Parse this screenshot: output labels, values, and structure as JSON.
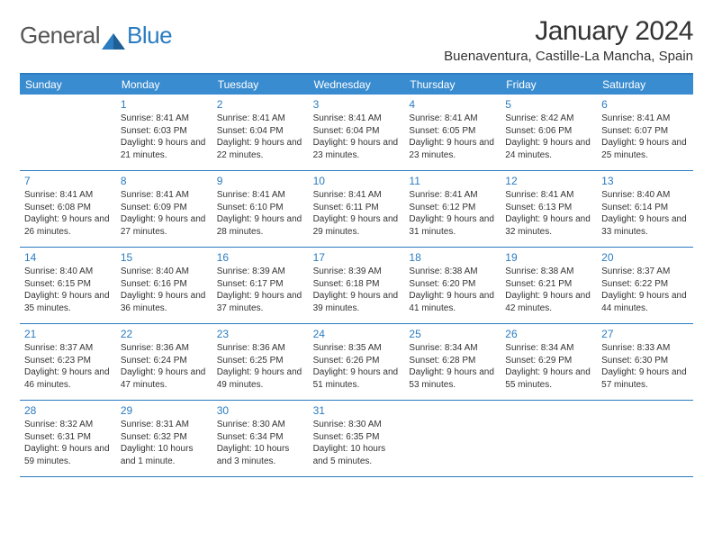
{
  "logo": {
    "text1": "General",
    "text2": "Blue"
  },
  "title": "January 2024",
  "location": "Buenaventura, Castille-La Mancha, Spain",
  "dow": [
    "Sunday",
    "Monday",
    "Tuesday",
    "Wednesday",
    "Thursday",
    "Friday",
    "Saturday"
  ],
  "colors": {
    "brand_blue": "#3a8cd0",
    "rule_blue": "#2b7cc0",
    "text": "#333333",
    "bg": "#ffffff"
  },
  "typography": {
    "title_fontsize": 30,
    "location_fontsize": 15,
    "dow_fontsize": 12,
    "daynum_fontsize": 12,
    "body_fontsize": 10
  },
  "layout": {
    "cols": 7,
    "rows": 5,
    "first_day_offset": 1
  },
  "days": [
    {
      "n": "1",
      "sr": "8:41 AM",
      "ss": "6:03 PM",
      "dl": "9 hours and 21 minutes."
    },
    {
      "n": "2",
      "sr": "8:41 AM",
      "ss": "6:04 PM",
      "dl": "9 hours and 22 minutes."
    },
    {
      "n": "3",
      "sr": "8:41 AM",
      "ss": "6:04 PM",
      "dl": "9 hours and 23 minutes."
    },
    {
      "n": "4",
      "sr": "8:41 AM",
      "ss": "6:05 PM",
      "dl": "9 hours and 23 minutes."
    },
    {
      "n": "5",
      "sr": "8:42 AM",
      "ss": "6:06 PM",
      "dl": "9 hours and 24 minutes."
    },
    {
      "n": "6",
      "sr": "8:41 AM",
      "ss": "6:07 PM",
      "dl": "9 hours and 25 minutes."
    },
    {
      "n": "7",
      "sr": "8:41 AM",
      "ss": "6:08 PM",
      "dl": "9 hours and 26 minutes."
    },
    {
      "n": "8",
      "sr": "8:41 AM",
      "ss": "6:09 PM",
      "dl": "9 hours and 27 minutes."
    },
    {
      "n": "9",
      "sr": "8:41 AM",
      "ss": "6:10 PM",
      "dl": "9 hours and 28 minutes."
    },
    {
      "n": "10",
      "sr": "8:41 AM",
      "ss": "6:11 PM",
      "dl": "9 hours and 29 minutes."
    },
    {
      "n": "11",
      "sr": "8:41 AM",
      "ss": "6:12 PM",
      "dl": "9 hours and 31 minutes."
    },
    {
      "n": "12",
      "sr": "8:41 AM",
      "ss": "6:13 PM",
      "dl": "9 hours and 32 minutes."
    },
    {
      "n": "13",
      "sr": "8:40 AM",
      "ss": "6:14 PM",
      "dl": "9 hours and 33 minutes."
    },
    {
      "n": "14",
      "sr": "8:40 AM",
      "ss": "6:15 PM",
      "dl": "9 hours and 35 minutes."
    },
    {
      "n": "15",
      "sr": "8:40 AM",
      "ss": "6:16 PM",
      "dl": "9 hours and 36 minutes."
    },
    {
      "n": "16",
      "sr": "8:39 AM",
      "ss": "6:17 PM",
      "dl": "9 hours and 37 minutes."
    },
    {
      "n": "17",
      "sr": "8:39 AM",
      "ss": "6:18 PM",
      "dl": "9 hours and 39 minutes."
    },
    {
      "n": "18",
      "sr": "8:38 AM",
      "ss": "6:20 PM",
      "dl": "9 hours and 41 minutes."
    },
    {
      "n": "19",
      "sr": "8:38 AM",
      "ss": "6:21 PM",
      "dl": "9 hours and 42 minutes."
    },
    {
      "n": "20",
      "sr": "8:37 AM",
      "ss": "6:22 PM",
      "dl": "9 hours and 44 minutes."
    },
    {
      "n": "21",
      "sr": "8:37 AM",
      "ss": "6:23 PM",
      "dl": "9 hours and 46 minutes."
    },
    {
      "n": "22",
      "sr": "8:36 AM",
      "ss": "6:24 PM",
      "dl": "9 hours and 47 minutes."
    },
    {
      "n": "23",
      "sr": "8:36 AM",
      "ss": "6:25 PM",
      "dl": "9 hours and 49 minutes."
    },
    {
      "n": "24",
      "sr": "8:35 AM",
      "ss": "6:26 PM",
      "dl": "9 hours and 51 minutes."
    },
    {
      "n": "25",
      "sr": "8:34 AM",
      "ss": "6:28 PM",
      "dl": "9 hours and 53 minutes."
    },
    {
      "n": "26",
      "sr": "8:34 AM",
      "ss": "6:29 PM",
      "dl": "9 hours and 55 minutes."
    },
    {
      "n": "27",
      "sr": "8:33 AM",
      "ss": "6:30 PM",
      "dl": "9 hours and 57 minutes."
    },
    {
      "n": "28",
      "sr": "8:32 AM",
      "ss": "6:31 PM",
      "dl": "9 hours and 59 minutes."
    },
    {
      "n": "29",
      "sr": "8:31 AM",
      "ss": "6:32 PM",
      "dl": "10 hours and 1 minute."
    },
    {
      "n": "30",
      "sr": "8:30 AM",
      "ss": "6:34 PM",
      "dl": "10 hours and 3 minutes."
    },
    {
      "n": "31",
      "sr": "8:30 AM",
      "ss": "6:35 PM",
      "dl": "10 hours and 5 minutes."
    }
  ],
  "labels": {
    "sunrise": "Sunrise:",
    "sunset": "Sunset:",
    "daylight": "Daylight:"
  }
}
